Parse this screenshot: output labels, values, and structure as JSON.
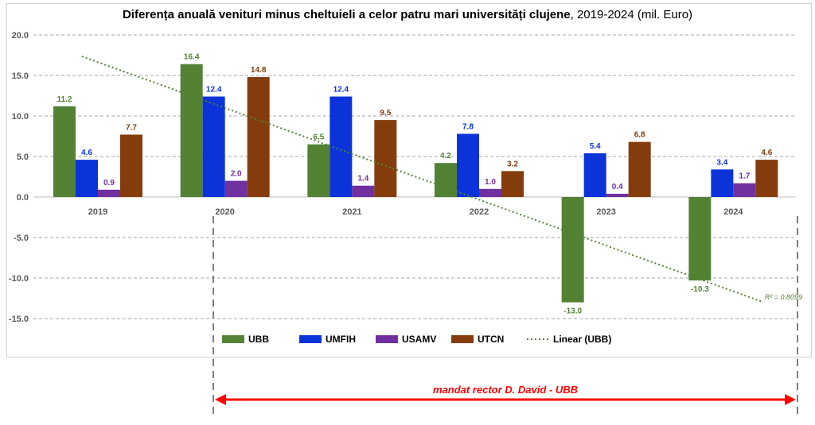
{
  "chart_data": {
    "type": "bar",
    "title_bold": "Diferența anuală venituri minus cheltuieli a celor patru mari universități clujene",
    "title_rest": ", 2019-2024 (mil. Euro)",
    "categories": [
      "2019",
      "2020",
      "2021",
      "2022",
      "2023",
      "2024"
    ],
    "series": [
      {
        "name": "UBB",
        "color": "#548235",
        "values": [
          11.2,
          16.4,
          6.5,
          4.2,
          -13.0,
          -10.3
        ]
      },
      {
        "name": "UMFIH",
        "color": "#0b33d9",
        "values": [
          4.6,
          12.4,
          12.4,
          7.8,
          5.4,
          3.4
        ]
      },
      {
        "name": "USAMV",
        "color": "#7030a0",
        "values": [
          0.9,
          2.0,
          1.4,
          1.0,
          0.4,
          1.7
        ]
      },
      {
        "name": "UTCN",
        "color": "#843c0c",
        "values": [
          7.7,
          14.8,
          9.5,
          3.2,
          6.8,
          4.6
        ]
      }
    ],
    "trendline": {
      "name": "Linear (UBB)",
      "color": "#548235",
      "r2_label": "R² = 0.8099"
    },
    "ylim": [
      -15,
      20
    ],
    "yticks": [
      "20.0",
      "15.0",
      "10.0",
      "5.0",
      "0.0",
      "-5.0",
      "-10.0",
      "-15.0"
    ],
    "ytick_values": [
      20,
      15,
      10,
      5,
      0,
      -5,
      -10,
      -15
    ],
    "grid": true,
    "legend": "bottom"
  },
  "annotation": {
    "label": "mandat rector D. David - UBB",
    "color": "#ff0000",
    "from_category": "2020",
    "to_category": "2024"
  }
}
